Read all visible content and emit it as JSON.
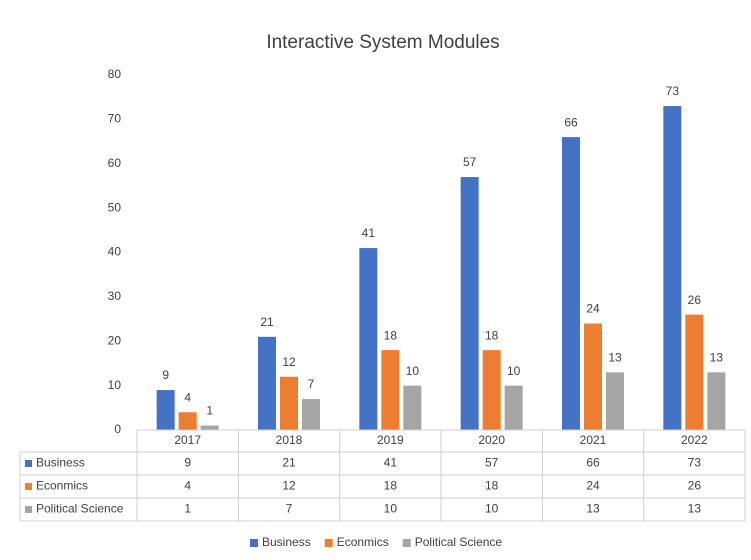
{
  "chart_data": {
    "type": "bar",
    "title": "Interactive System Modules",
    "categories": [
      "2017",
      "2018",
      "2019",
      "2020",
      "2021",
      "2022"
    ],
    "series": [
      {
        "name": "Business",
        "color": "#4472c4",
        "values": [
          9,
          21,
          41,
          57,
          66,
          73
        ]
      },
      {
        "name": "Econmics",
        "color": "#ed7d31",
        "values": [
          4,
          12,
          18,
          18,
          24,
          26
        ]
      },
      {
        "name": "Political Science",
        "color": "#a5a5a5",
        "values": [
          1,
          7,
          10,
          10,
          13,
          13
        ]
      }
    ],
    "ylim": [
      0,
      80
    ],
    "yticks": [
      0,
      10,
      20,
      30,
      40,
      50,
      60,
      70,
      80
    ],
    "grid": false,
    "legend": "bottom",
    "data_table": true
  }
}
